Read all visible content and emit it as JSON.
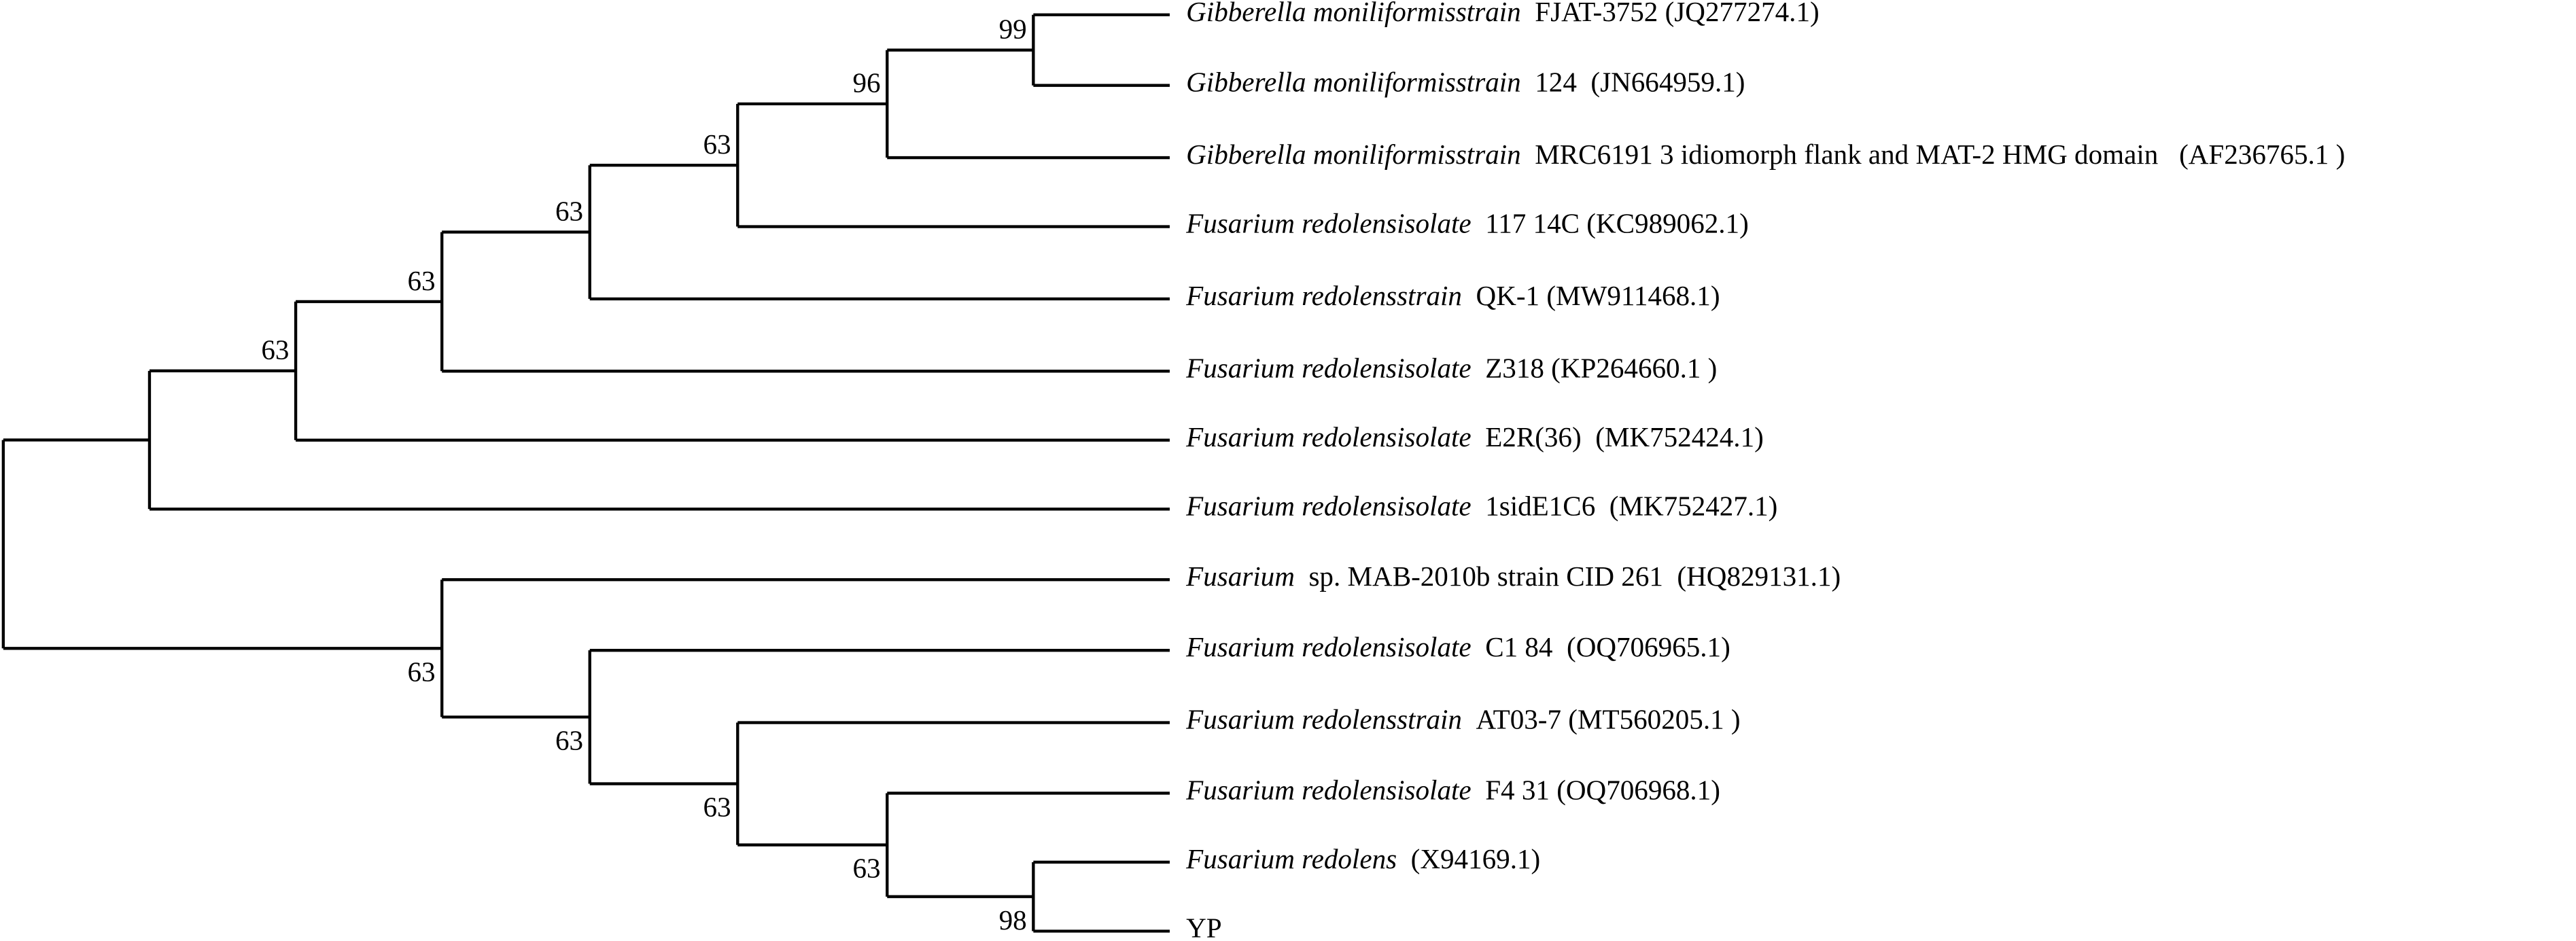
{
  "leaves": [
    {
      "italic": "Gibberella moniliformisstrain",
      "rest": "FJAT-3752 (JQ277274.1)"
    },
    {
      "italic": "Gibberella moniliformisstrain",
      "rest": "124  (JN664959.1)"
    },
    {
      "italic": "Gibberella moniliformisstrain",
      "rest": "MRC6191 3 idiomorph flank and MAT-2 HMG domain   (AF236765.1 )"
    },
    {
      "italic": "Fusarium redolensisolate",
      "rest": "117 14C (KC989062.1)"
    },
    {
      "italic": "Fusarium redolensstrain",
      "rest": "QK-1 (MW911468.1)"
    },
    {
      "italic": "Fusarium redolensisolate",
      "rest": "Z318 (KP264660.1 )"
    },
    {
      "italic": "Fusarium redolensisolate",
      "rest": "E2R(36)  (MK752424.1)"
    },
    {
      "italic": "Fusarium redolensisolate",
      "rest": "1sidE1C6  (MK752427.1)"
    },
    {
      "italic": "Fusarium",
      "rest": "sp. MAB-2010b strain CID 261  (HQ829131.1)"
    },
    {
      "italic": "Fusarium redolensisolate",
      "rest": "C1 84  (OQ706965.1)"
    },
    {
      "italic": "Fusarium redolensstrain",
      "rest": "AT03-7 (MT560205.1 )"
    },
    {
      "italic": "Fusarium redolensisolate",
      "rest": "F4 31 (OQ706968.1)"
    },
    {
      "italic": "Fusarium redolens",
      "rest": "(X94169.1)"
    },
    {
      "rest": "YP"
    }
  ],
  "nodes": [
    {
      "label": "99"
    },
    {
      "label": "96"
    },
    {
      "label": "63"
    },
    {
      "label": "63"
    },
    {
      "label": "63"
    },
    {
      "label": "63"
    },
    {
      "label": "63"
    },
    {
      "label": "63"
    },
    {
      "label": "63"
    },
    {
      "label": "63"
    },
    {
      "label": "98"
    }
  ]
}
